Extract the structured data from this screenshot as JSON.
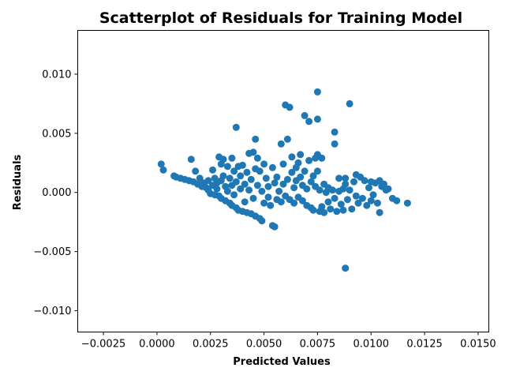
{
  "chart_data": {
    "type": "scatter",
    "title": "Scatterplot of Residuals for Training Model",
    "xlabel": "Predicted Values",
    "ylabel": "Residuals",
    "xlim": [
      -0.0037,
      0.0155
    ],
    "ylim": [
      -0.0118,
      0.0137
    ],
    "x_ticks": [
      -0.0025,
      0.0,
      0.0025,
      0.005,
      0.0075,
      0.01,
      0.0125,
      0.015
    ],
    "x_tick_labels": [
      "−0.0025",
      "0.0000",
      "0.0025",
      "0.0050",
      "0.0075",
      "0.0100",
      "0.0125",
      "0.0150"
    ],
    "y_ticks": [
      -0.01,
      -0.005,
      0.0,
      0.005,
      0.01
    ],
    "y_tick_labels": [
      "−0.010",
      "−0.005",
      "0.000",
      "0.005",
      "0.010"
    ],
    "grid": false,
    "marker_color": "#1f77b4",
    "series": [
      {
        "points": [
          [
            0.0002,
            0.0024
          ],
          [
            0.0003,
            0.0019
          ],
          [
            0.0008,
            0.0014
          ],
          [
            0.0009,
            0.0013
          ],
          [
            0.0011,
            0.0012
          ],
          [
            0.0013,
            0.0011
          ],
          [
            0.0015,
            0.001
          ],
          [
            0.0016,
            0.0028
          ],
          [
            0.0017,
            0.0009
          ],
          [
            0.0018,
            0.0018
          ],
          [
            0.0019,
            0.0007
          ],
          [
            0.002,
            0.0012
          ],
          [
            0.0021,
            0.0005
          ],
          [
            0.0022,
            0.0008
          ],
          [
            0.0023,
            0.0004
          ],
          [
            0.0024,
            0.001
          ],
          [
            0.0024,
            0.0002
          ],
          [
            0.0025,
            -0.0001
          ],
          [
            0.0026,
            0.0019
          ],
          [
            0.0026,
            0.0006
          ],
          [
            0.0027,
            -0.0002
          ],
          [
            0.0027,
            0.0012
          ],
          [
            0.0028,
            0.0008
          ],
          [
            0.0028,
            0.0003
          ],
          [
            0.0029,
            0.003
          ],
          [
            0.0029,
            -0.0003
          ],
          [
            0.003,
            0.0024
          ],
          [
            0.003,
            0.001
          ],
          [
            0.003,
            -0.0005
          ],
          [
            0.0031,
            0.0028
          ],
          [
            0.0031,
            0.0014
          ],
          [
            0.0032,
            0.0005
          ],
          [
            0.0032,
            -0.0007
          ],
          [
            0.0033,
            0.0022
          ],
          [
            0.0033,
            0.0001
          ],
          [
            0.0034,
            -0.0009
          ],
          [
            0.0034,
            0.0012
          ],
          [
            0.0035,
            0.0029
          ],
          [
            0.0035,
            -0.0011
          ],
          [
            0.0035,
            0.0006
          ],
          [
            0.0036,
            -0.0002
          ],
          [
            0.0036,
            0.0018
          ],
          [
            0.0037,
            0.0055
          ],
          [
            0.0037,
            -0.0013
          ],
          [
            0.0037,
            0.0009
          ],
          [
            0.0038,
            0.0022
          ],
          [
            0.0038,
            -0.0015
          ],
          [
            0.0039,
            0.0003
          ],
          [
            0.0039,
            0.0014
          ],
          [
            0.004,
            -0.0016
          ],
          [
            0.004,
            0.0023
          ],
          [
            0.0041,
            0.0007
          ],
          [
            0.0041,
            -0.0008
          ],
          [
            0.0042,
            0.0017
          ],
          [
            0.0042,
            -0.0017
          ],
          [
            0.0043,
            0.0002
          ],
          [
            0.0043,
            0.0033
          ],
          [
            0.0044,
            -0.0018
          ],
          [
            0.0044,
            0.0011
          ],
          [
            0.0045,
            0.0034
          ],
          [
            0.0045,
            -0.0005
          ],
          [
            0.0046,
            0.0045
          ],
          [
            0.0046,
            -0.002
          ],
          [
            0.0046,
            0.002
          ],
          [
            0.0047,
            0.0029
          ],
          [
            0.0047,
            0.0006
          ],
          [
            0.0048,
            -0.0022
          ],
          [
            0.0048,
            0.0018
          ],
          [
            0.0049,
            -0.0024
          ],
          [
            0.0049,
            0.0001
          ],
          [
            0.005,
            0.0024
          ],
          [
            0.005,
            -0.0009
          ],
          [
            0.0051,
            0.0012
          ],
          [
            0.0052,
            -0.0004
          ],
          [
            0.0052,
            0.0005
          ],
          [
            0.0053,
            -0.0011
          ],
          [
            0.0054,
            -0.0028
          ],
          [
            0.0054,
            0.0021
          ],
          [
            0.0055,
            -0.0029
          ],
          [
            0.0055,
            0.0008
          ],
          [
            0.0056,
            -0.0006
          ],
          [
            0.0056,
            0.0013
          ],
          [
            0.0057,
            0.0001
          ],
          [
            0.0058,
            -0.0008
          ],
          [
            0.0058,
            0.0041
          ],
          [
            0.0059,
            0.0024
          ],
          [
            0.0059,
            0.0007
          ],
          [
            0.006,
            0.0074
          ],
          [
            0.006,
            -0.0003
          ],
          [
            0.0061,
            0.0045
          ],
          [
            0.0061,
            0.0011
          ],
          [
            0.0062,
            0.0072
          ],
          [
            0.0062,
            -0.0006
          ],
          [
            0.0063,
            0.003
          ],
          [
            0.0063,
            0.0017
          ],
          [
            0.0064,
            0.0004
          ],
          [
            0.0064,
            -0.0009
          ],
          [
            0.0065,
            0.0021
          ],
          [
            0.0065,
            0.001
          ],
          [
            0.0066,
            0.0025
          ],
          [
            0.0066,
            -0.0004
          ],
          [
            0.0067,
            0.0032
          ],
          [
            0.0067,
            0.0013
          ],
          [
            0.0068,
            -0.0007
          ],
          [
            0.0068,
            0.0006
          ],
          [
            0.0069,
            0.0065
          ],
          [
            0.0069,
            0.0018
          ],
          [
            0.007,
            -0.0011
          ],
          [
            0.007,
            0.0003
          ],
          [
            0.0071,
            0.006
          ],
          [
            0.0071,
            0.0027
          ],
          [
            0.0072,
            -0.0013
          ],
          [
            0.0072,
            0.0009
          ],
          [
            0.0073,
            0.0014
          ],
          [
            0.0073,
            -0.0015
          ],
          [
            0.0074,
            0.0029
          ],
          [
            0.0074,
            0.0005
          ],
          [
            0.0075,
            0.0085
          ],
          [
            0.0075,
            0.0062
          ],
          [
            0.0075,
            0.0032
          ],
          [
            0.0075,
            0.0018
          ],
          [
            0.0076,
            -0.0016
          ],
          [
            0.0076,
            0.0002
          ],
          [
            0.0077,
            0.0029
          ],
          [
            0.0077,
            -0.0012
          ],
          [
            0.0078,
            0.0007
          ],
          [
            0.0078,
            -0.0017
          ],
          [
            0.0079,
            0.0
          ],
          [
            0.008,
            -0.0008
          ],
          [
            0.008,
            0.0004
          ],
          [
            0.0081,
            -0.0014
          ],
          [
            0.0082,
            0.0002
          ],
          [
            0.0083,
            0.0051
          ],
          [
            0.0083,
            0.0041
          ],
          [
            0.0083,
            -0.0005
          ],
          [
            0.0084,
            -0.0016
          ],
          [
            0.0085,
            0.0012
          ],
          [
            0.0085,
            0.0001
          ],
          [
            0.0086,
            -0.001
          ],
          [
            0.0087,
            0.0003
          ],
          [
            0.0087,
            -0.0015
          ],
          [
            0.0088,
            -0.0064
          ],
          [
            0.0088,
            0.0012
          ],
          [
            0.0088,
            0.0007
          ],
          [
            0.0089,
            -0.0006
          ],
          [
            0.009,
            0.0075
          ],
          [
            0.009,
            0.0002
          ],
          [
            0.0091,
            -0.0014
          ],
          [
            0.0092,
            0.0009
          ],
          [
            0.0093,
            0.0015
          ],
          [
            0.0093,
            -0.0003
          ],
          [
            0.0094,
            -0.0009
          ],
          [
            0.0095,
            0.0013
          ],
          [
            0.0096,
            -0.0005
          ],
          [
            0.0097,
            0.001
          ],
          [
            0.0098,
            -0.0011
          ],
          [
            0.0099,
            0.0004
          ],
          [
            0.01,
            0.0009
          ],
          [
            0.01,
            -0.0007
          ],
          [
            0.0101,
            -0.0002
          ],
          [
            0.0102,
            0.0008
          ],
          [
            0.0103,
            -0.0009
          ],
          [
            0.0104,
            0.001
          ],
          [
            0.0104,
            -0.0017
          ],
          [
            0.0105,
            0.0005
          ],
          [
            0.0106,
            0.0007
          ],
          [
            0.0107,
            0.0002
          ],
          [
            0.0108,
            0.0003
          ],
          [
            0.011,
            -0.0005
          ],
          [
            0.0112,
            -0.0007
          ],
          [
            0.0117,
            -0.0009
          ]
        ]
      }
    ]
  }
}
